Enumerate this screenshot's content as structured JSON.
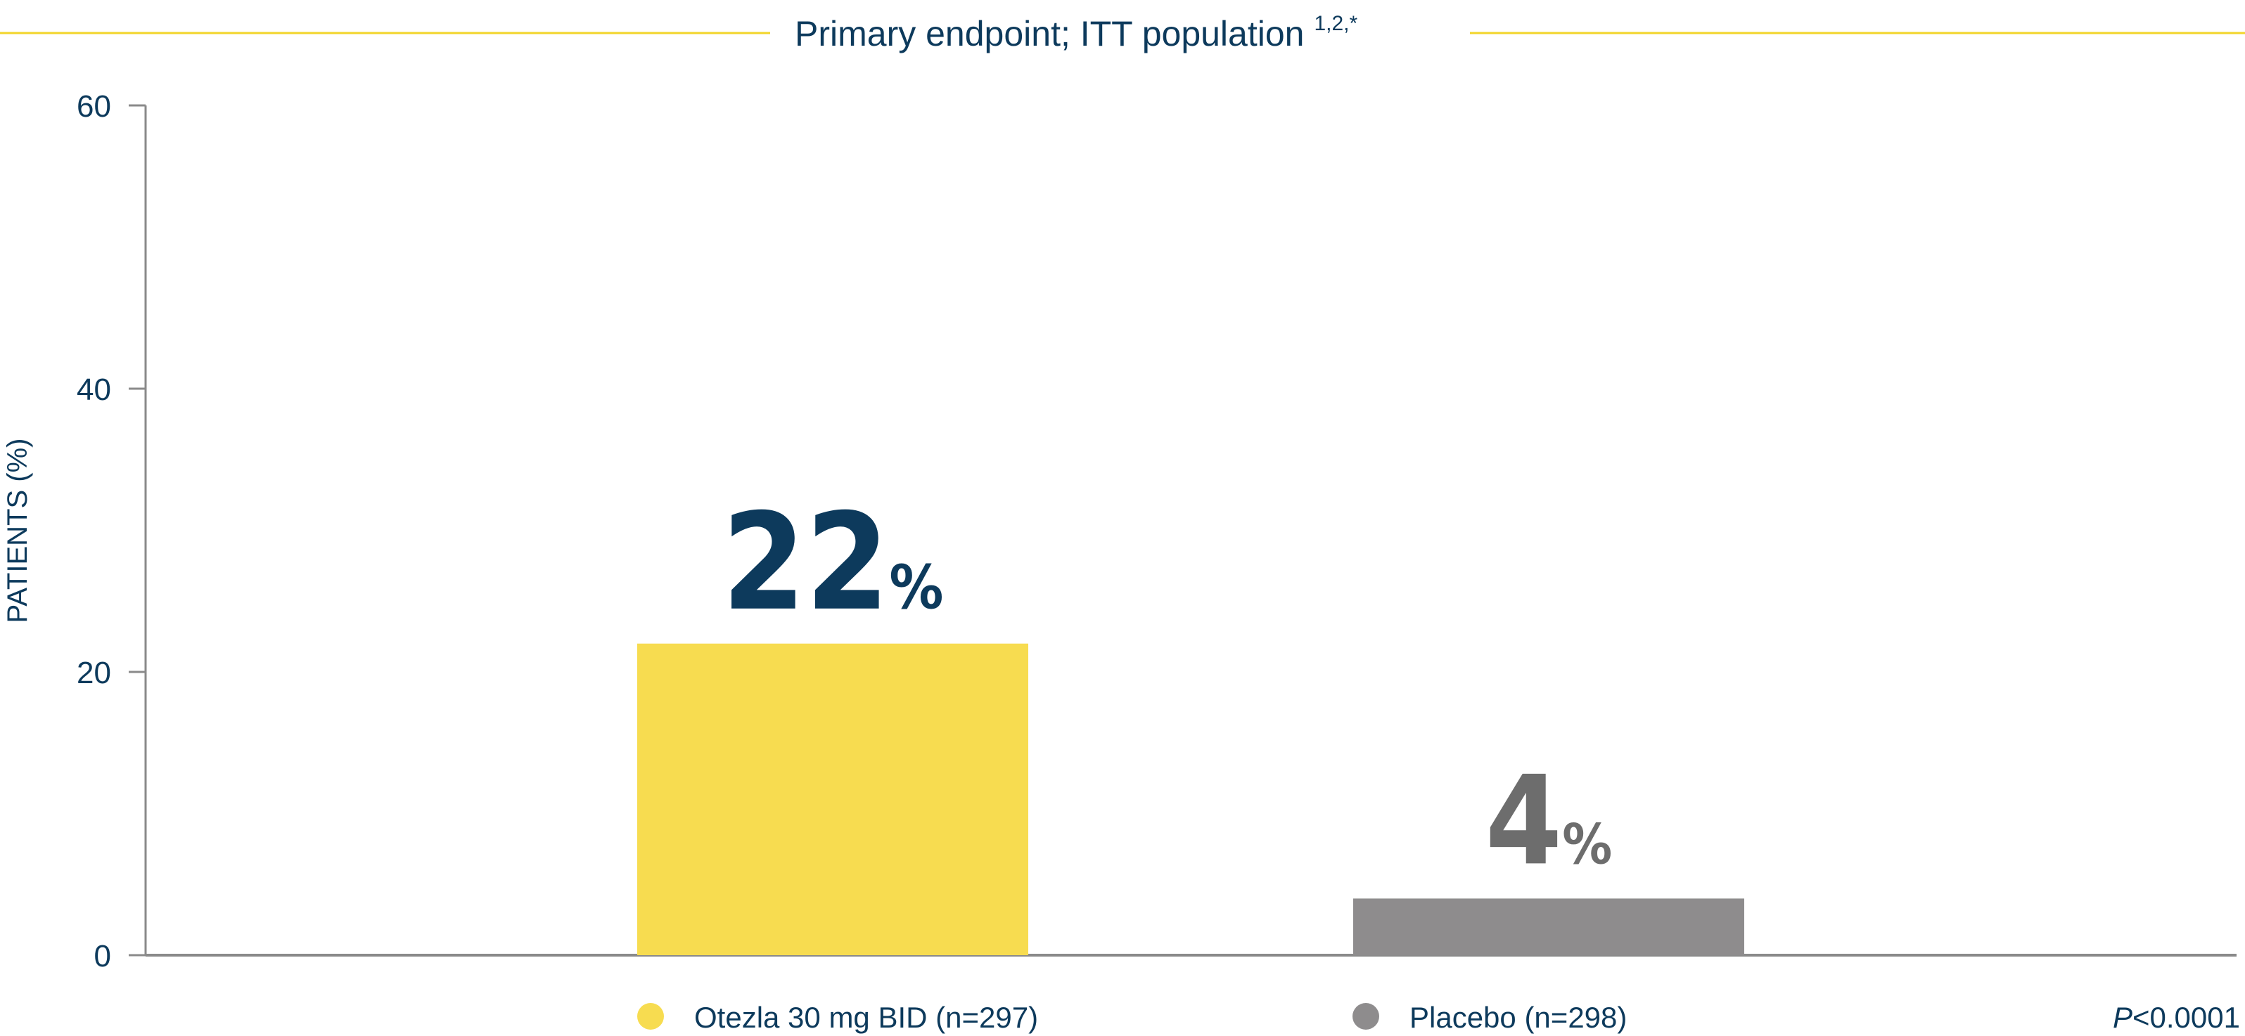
{
  "chart_data": {
    "type": "bar",
    "title": "Primary endpoint; ITT population",
    "title_superscript": "1,2,*",
    "ylabel": "PATIENTS (%)",
    "xlabel": "",
    "ylim": [
      0,
      60
    ],
    "yticks": [
      0,
      20,
      40,
      60
    ],
    "grid": false,
    "categories": [
      "Otezla 30 mg BID (n=297)",
      "Placebo (n=298)"
    ],
    "values": [
      22,
      4
    ],
    "value_labels": [
      "22",
      "4"
    ],
    "value_suffix": "%",
    "colors": [
      "#f7dc50",
      "#8e8c8d"
    ],
    "label_colors": [
      "#0d3a5c",
      "#6d6d6d"
    ],
    "legend_position": "bottom",
    "annotation": {
      "italic": "P",
      "rest": "<0.0001"
    }
  },
  "colors": {
    "accent_line": "#f2d52a",
    "text": "#0d3a5c",
    "axis": "#8a8a8a"
  }
}
